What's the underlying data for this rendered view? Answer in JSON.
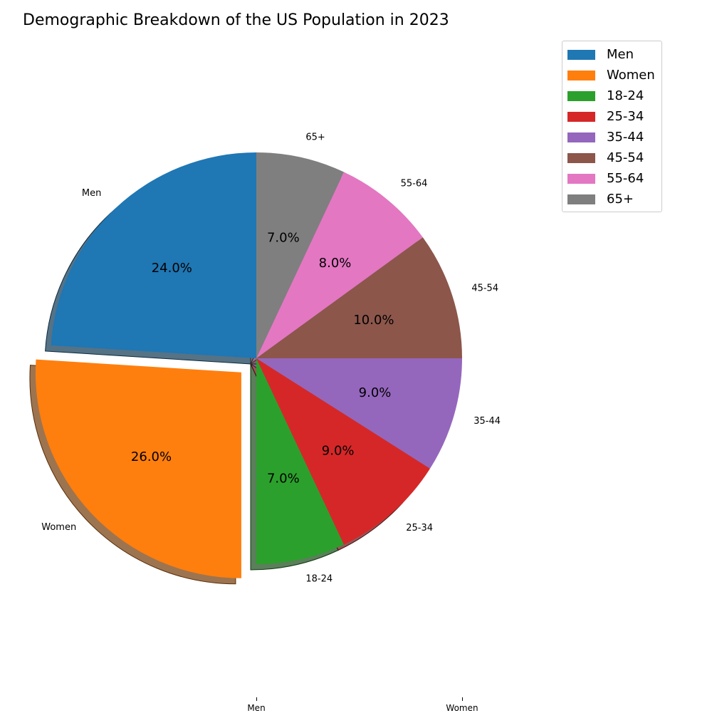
{
  "chart_data": {
    "type": "pie",
    "title": "Demographic Breakdown of the US Population in 2023",
    "slices": [
      {
        "label": "Men",
        "value": 24.0,
        "pct_label": "24.0%",
        "color": "#1f77b4",
        "exploded": false
      },
      {
        "label": "Women",
        "value": 26.0,
        "pct_label": "26.0%",
        "color": "#ff7f0e",
        "exploded": true
      },
      {
        "label": "18-24",
        "value": 7.0,
        "pct_label": "7.0%",
        "color": "#2ca02c",
        "exploded": false
      },
      {
        "label": "25-34",
        "value": 9.0,
        "pct_label": "9.0%",
        "color": "#d62728",
        "exploded": false
      },
      {
        "label": "35-44",
        "value": 9.0,
        "pct_label": "9.0%",
        "color": "#9467bd",
        "exploded": false
      },
      {
        "label": "45-54",
        "value": 10.0,
        "pct_label": "10.0%",
        "color": "#8c564b",
        "exploded": false
      },
      {
        "label": "55-64",
        "value": 8.0,
        "pct_label": "8.0%",
        "color": "#e377c2",
        "exploded": false
      },
      {
        "label": "65+",
        "value": 7.0,
        "pct_label": "7.0%",
        "color": "#7f7f7f",
        "exploded": false
      }
    ],
    "start_angle_deg": 90,
    "shadow": true,
    "legend": {
      "placement": "upper-right-outside"
    },
    "x_ticks": [
      "Men",
      "Women"
    ]
  }
}
